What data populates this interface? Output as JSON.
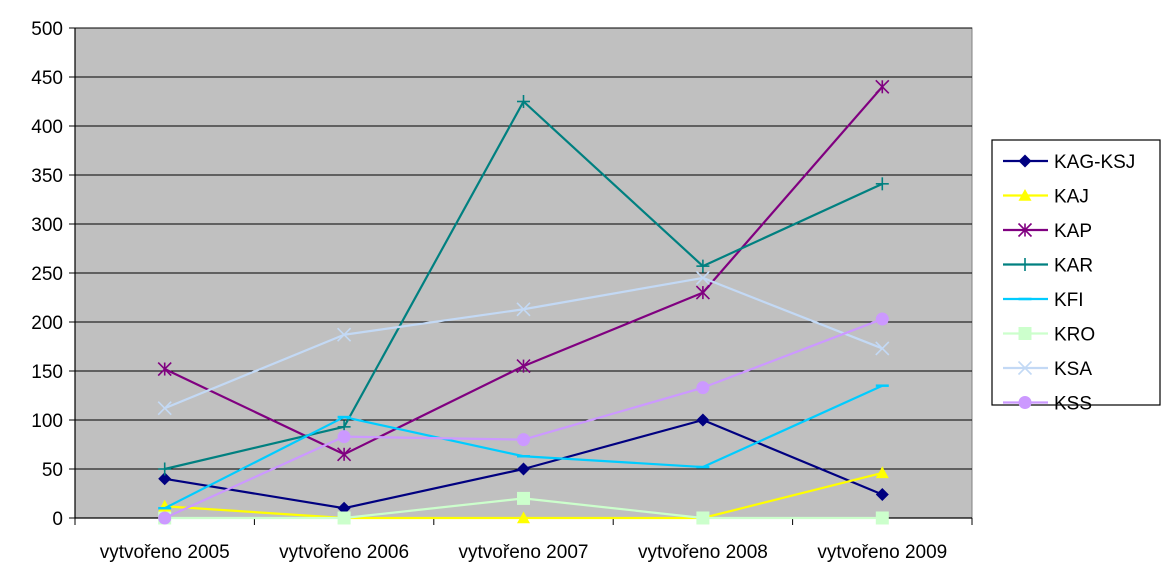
{
  "chart_data": {
    "type": "line",
    "title": "",
    "xlabel": "",
    "ylabel": "",
    "ylim": [
      0,
      500
    ],
    "yticks": [
      "0",
      "50",
      "100",
      "150",
      "200",
      "250",
      "300",
      "350",
      "400",
      "450",
      "500"
    ],
    "categories": [
      "vytvořeno 2005",
      "vytvořeno 2006",
      "vytvořeno 2007",
      "vytvořeno 2008",
      "vytvořeno 2009"
    ],
    "grid": true,
    "plot_background": "#c0c0c0",
    "legend_position": "right",
    "series": [
      {
        "name": "KAG-KSJ",
        "color": "#000080",
        "marker": "diamond",
        "values": [
          40,
          10,
          50,
          100,
          24
        ]
      },
      {
        "name": "KAJ",
        "color": "#ffff00",
        "marker": "triangle",
        "values": [
          12,
          0,
          0,
          0,
          46
        ]
      },
      {
        "name": "KAP",
        "color": "#800080",
        "marker": "star",
        "values": [
          152,
          65,
          155,
          230,
          440
        ]
      },
      {
        "name": "KAR",
        "color": "#008080",
        "marker": "plus",
        "values": [
          50,
          93,
          425,
          257,
          341
        ]
      },
      {
        "name": "KFI",
        "color": "#00ccff",
        "marker": "dash",
        "values": [
          10,
          103,
          63,
          52,
          135
        ]
      },
      {
        "name": "KRO",
        "color": "#ccffcc",
        "marker": "square",
        "values": [
          0,
          0,
          20,
          0,
          0
        ]
      },
      {
        "name": "KSA",
        "color": "#c3d9f5",
        "marker": "x",
        "values": [
          112,
          187,
          213,
          245,
          173
        ]
      },
      {
        "name": "KSS",
        "color": "#cc99ff",
        "marker": "circle",
        "values": [
          0,
          83,
          80,
          133,
          203
        ]
      }
    ]
  }
}
